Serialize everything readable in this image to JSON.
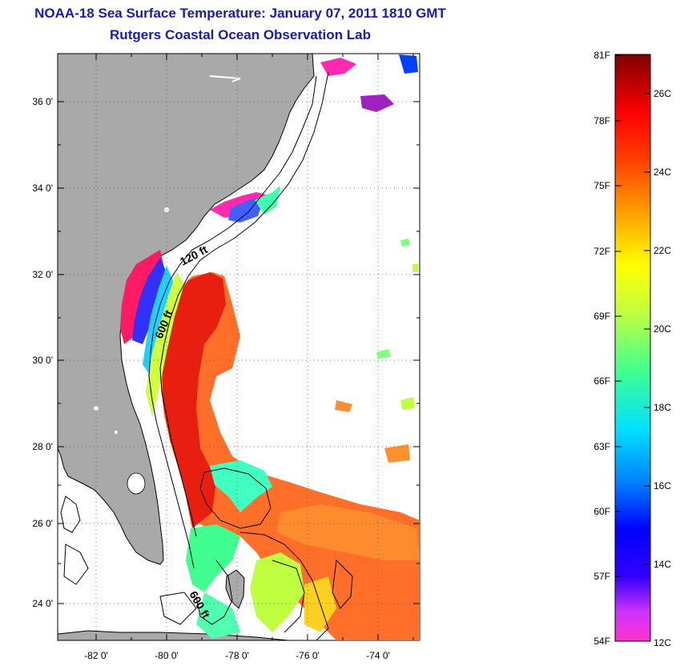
{
  "header": {
    "title": "NOAA-18 Sea Surface Temperature:  January 07, 2011 1810 GMT",
    "subtitle": "Rutgers Coastal Ocean Observation Lab"
  },
  "map": {
    "lat_labels": [
      "36 0'",
      "34 0'",
      "32 0'",
      "30 0'",
      "28 0'",
      "26 0'",
      "24 0'"
    ],
    "lon_labels": [
      "-82 0'",
      "-80 0'",
      "-78 0'",
      "-76 0'",
      "-74 0'"
    ],
    "contour_labels": [
      "120 ft",
      "600 ft",
      "600 ft"
    ],
    "colors": {
      "land": "#a9a9a9",
      "ocean_no_data": "#ffffff",
      "coastline": "#000000"
    }
  },
  "colorbar": {
    "fahrenheit_labels": [
      "81F",
      "78F",
      "75F",
      "72F",
      "69F",
      "66F",
      "63F",
      "60F",
      "57F",
      "54F"
    ],
    "celsius_labels": [
      "26C",
      "24C",
      "22C",
      "20C",
      "18C",
      "16C",
      "14C",
      "12C"
    ],
    "colors": [
      "#7f0000",
      "#ff0000",
      "#ff8000",
      "#ffff00",
      "#80ff80",
      "#00ffff",
      "#0080ff",
      "#0000ff",
      "#8000ff",
      "#ff00ff"
    ]
  }
}
